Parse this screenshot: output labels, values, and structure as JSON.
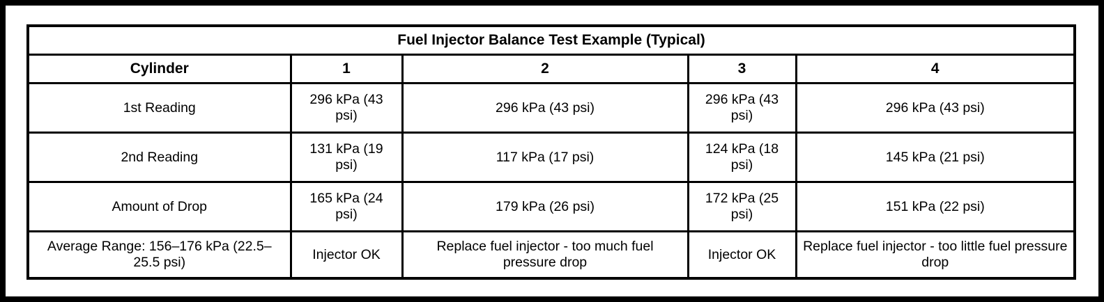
{
  "table": {
    "title": "Fuel Injector Balance Test Example (Typical)",
    "header": [
      "Cylinder",
      "1",
      "2",
      "3",
      "4"
    ],
    "rows": [
      {
        "label": "1st Reading",
        "cells": [
          "296 kPa (43 psi)",
          "296 kPa (43 psi)",
          "296 kPa (43 psi)",
          "296 kPa (43 psi)"
        ]
      },
      {
        "label": "2nd Reading",
        "cells": [
          "131 kPa (19 psi)",
          "117 kPa (17 psi)",
          "124 kPa (18 psi)",
          "145 kPa (21 psi)"
        ]
      },
      {
        "label": "Amount of Drop",
        "cells": [
          "165 kPa (24 psi)",
          "179 kPa (26 psi)",
          "172 kPa (25 psi)",
          "151 kPa (22 psi)"
        ]
      },
      {
        "label": "Average Range: 156–176 kPa (22.5–25.5 psi)",
        "cells": [
          "Injector OK",
          "Replace fuel injector - too much fuel pressure drop",
          "Injector OK",
          "Replace fuel injector - too little fuel pressure drop"
        ]
      }
    ]
  }
}
